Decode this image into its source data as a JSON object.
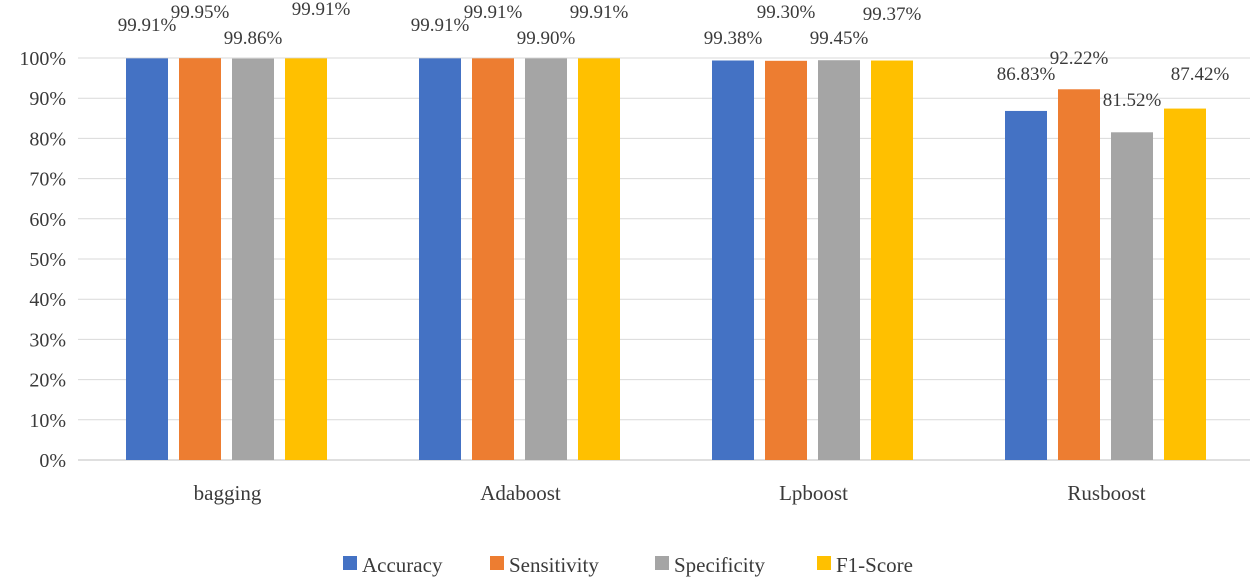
{
  "chart_data": {
    "type": "bar",
    "title": "",
    "xlabel": "",
    "ylabel": "",
    "ylim": [
      0,
      100
    ],
    "ytick_step": 10,
    "grid": true,
    "legend_position": "bottom",
    "yticks": [
      "0%",
      "10%",
      "20%",
      "30%",
      "40%",
      "50%",
      "60%",
      "70%",
      "80%",
      "90%",
      "100%"
    ],
    "categories": [
      "bagging",
      "Adaboost",
      "Lpboost",
      "Rusboost"
    ],
    "series": [
      {
        "name": "Accuracy",
        "color": "#4472c4",
        "values": [
          99.91,
          99.91,
          99.38,
          86.83
        ],
        "labels": [
          "99.91%",
          "99.91%",
          "99.38%",
          "86.83%"
        ]
      },
      {
        "name": "Sensitivity",
        "color": "#ed7d31",
        "values": [
          99.95,
          99.91,
          99.3,
          92.22
        ],
        "labels": [
          "99.95%",
          "99.91%",
          "99.30%",
          "92.22%"
        ]
      },
      {
        "name": "Specificity",
        "color": "#a5a5a5",
        "values": [
          99.86,
          99.9,
          99.45,
          81.52
        ],
        "labels": [
          "99.86%",
          "99.90%",
          "99.45%",
          "81.52%"
        ]
      },
      {
        "name": "F1-Score",
        "color": "#ffc000",
        "values": [
          99.91,
          99.91,
          99.37,
          87.42
        ],
        "labels": [
          "99.91%",
          "99.91%",
          "99.37%",
          "87.42%"
        ]
      }
    ]
  }
}
